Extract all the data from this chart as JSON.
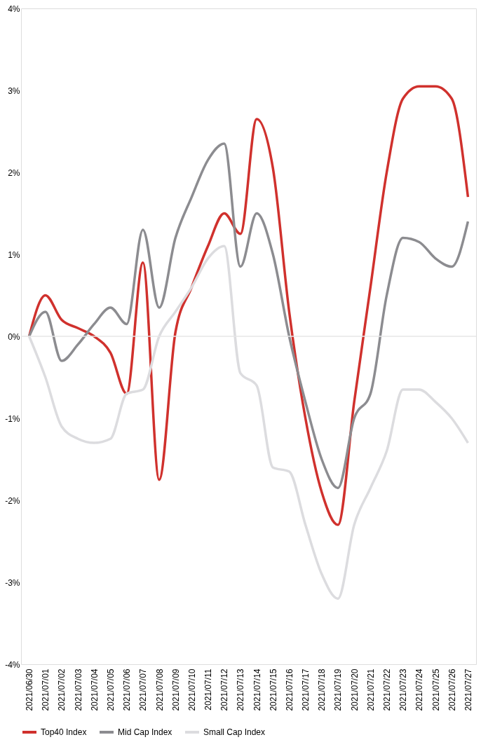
{
  "chart_data": {
    "type": "line",
    "categories": [
      "2021/06/30",
      "2021/07/01",
      "2021/07/02",
      "2021/07/03",
      "2021/07/04",
      "2021/07/05",
      "2021/07/06",
      "2021/07/07",
      "2021/07/08",
      "2021/07/09",
      "2021/07/10",
      "2021/07/11",
      "2021/07/12",
      "2021/07/13",
      "2021/07/14",
      "2021/07/15",
      "2021/07/16",
      "2021/07/17",
      "2021/07/18",
      "2021/07/19",
      "2021/07/20",
      "2021/07/21",
      "2021/07/22",
      "2021/07/23",
      "2021/07/24",
      "2021/07/25",
      "2021/07/26",
      "2021/07/27"
    ],
    "series": [
      {
        "name": "Top40 Index",
        "color": "#d0312d",
        "values": [
          0,
          0.5,
          0.2,
          0.1,
          0.0,
          -0.2,
          -0.7,
          0.9,
          -1.75,
          0.05,
          0.6,
          1.1,
          1.5,
          1.25,
          2.65,
          2.05,
          0.3,
          -1.0,
          -1.9,
          -2.3,
          -0.8,
          0.6,
          2.0,
          2.9,
          3.05,
          3.05,
          2.9,
          1.7
        ]
      },
      {
        "name": "Mid Cap Index",
        "color": "#8c8c90",
        "values": [
          0,
          0.3,
          -0.3,
          -0.1,
          0.15,
          0.35,
          0.15,
          1.3,
          0.35,
          1.2,
          1.7,
          2.15,
          2.35,
          0.85,
          1.5,
          1.0,
          0.0,
          -0.8,
          -1.5,
          -1.85,
          -1.0,
          -0.7,
          0.5,
          1.2,
          1.15,
          0.95,
          0.85,
          1.4
        ]
      },
      {
        "name": "Small Cap Index",
        "color": "#dcdcdf",
        "values": [
          0,
          -0.5,
          -1.1,
          -1.25,
          -1.3,
          -1.25,
          -0.7,
          -0.65,
          0.0,
          0.3,
          0.6,
          0.95,
          1.1,
          -0.45,
          -0.6,
          -1.6,
          -1.65,
          -2.3,
          -2.9,
          -3.2,
          -2.3,
          -1.85,
          -1.4,
          -0.65,
          -0.65,
          -0.8,
          -1.0,
          -1.3
        ]
      }
    ],
    "ylim": [
      -4,
      4
    ],
    "yticks": [
      {
        "value": -4,
        "label": "-4%"
      },
      {
        "value": -3,
        "label": "-3%"
      },
      {
        "value": -2,
        "label": "-2%"
      },
      {
        "value": -1,
        "label": "-1%"
      },
      {
        "value": 0,
        "label": "0%"
      },
      {
        "value": 1,
        "label": "1%"
      },
      {
        "value": 2,
        "label": "2%"
      },
      {
        "value": 3,
        "label": "3%"
      },
      {
        "value": 4,
        "label": "4%"
      }
    ],
    "ref_lines": [
      {
        "axis": "y",
        "value": 0,
        "color": "#e6e6e6"
      }
    ],
    "grid": false,
    "legend": "bottom",
    "marker": "none",
    "line_style": "solid"
  }
}
